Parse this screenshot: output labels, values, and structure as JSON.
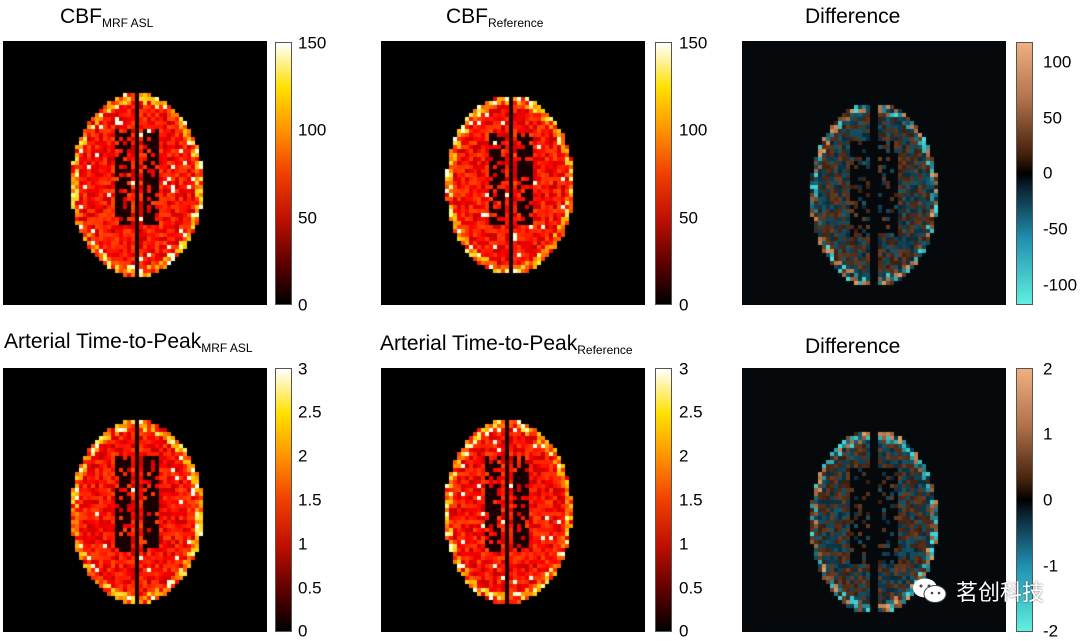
{
  "panels": [
    {
      "id": "cbf-mrf",
      "title": "CBF",
      "subscript": "MRF ASL",
      "colormap": "hot",
      "ticks": [
        "150",
        "100",
        "50",
        "0"
      ]
    },
    {
      "id": "cbf-ref",
      "title": "CBF",
      "subscript": "Reference",
      "colormap": "hot",
      "ticks": [
        "150",
        "100",
        "50",
        "0"
      ]
    },
    {
      "id": "cbf-diff",
      "title": "Difference",
      "subscript": "",
      "colormap": "diverging",
      "ticks": [
        "100",
        "50",
        "0",
        "-50",
        "-100"
      ]
    },
    {
      "id": "ttp-mrf",
      "title": "Arterial Time-to-Peak",
      "subscript": "MRF ASL",
      "colormap": "hot",
      "ticks": [
        "3",
        "2.5",
        "2",
        "1.5",
        "1",
        "0.5",
        "0"
      ]
    },
    {
      "id": "ttp-ref",
      "title": "Arterial Time-to-Peak",
      "subscript": "Reference",
      "colormap": "hot",
      "ticks": [
        "3",
        "2.5",
        "2",
        "1.5",
        "1",
        "0.5",
        "0"
      ]
    },
    {
      "id": "ttp-diff",
      "title": "Difference",
      "subscript": "",
      "colormap": "diverging",
      "ticks": [
        "2",
        "1",
        "0",
        "-1",
        "-2"
      ]
    }
  ],
  "watermark": {
    "text": "茗创科技",
    "icon": "wechat-icon"
  },
  "colors": {
    "hot_low": "#000000",
    "hot_mid": "#cc2000",
    "hot_high": "#ffffff",
    "pos": "#f0b080",
    "neg": "#60f0e0"
  }
}
